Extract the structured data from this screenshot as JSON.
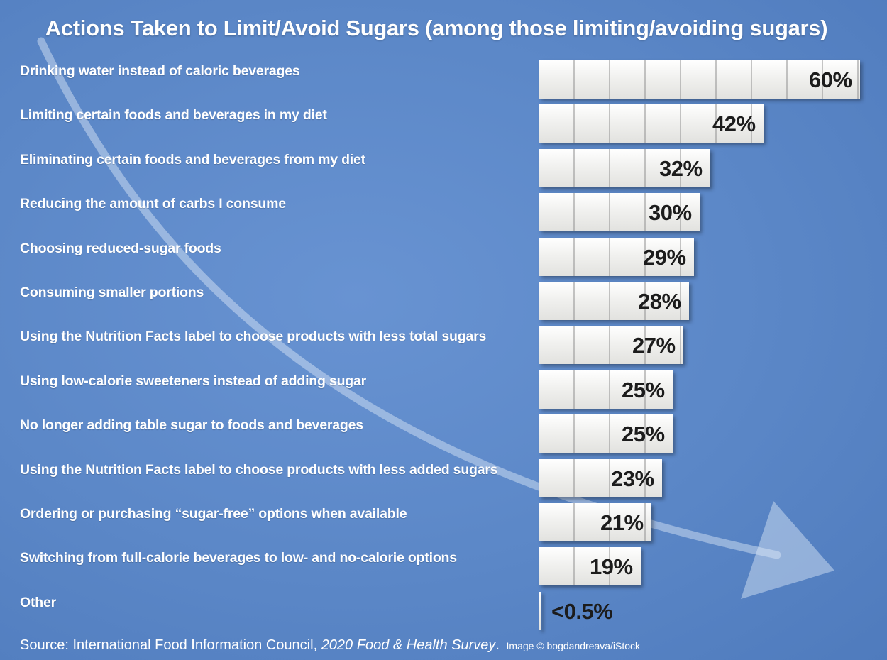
{
  "chart_data": {
    "type": "bar",
    "orientation": "horizontal",
    "title": "Actions Taken to Limit/Avoid Sugars (among those limiting/avoiding sugars)",
    "xlabel": "",
    "ylabel": "",
    "xlim": [
      0,
      60
    ],
    "grid": false,
    "categories": [
      "Drinking water instead of caloric beverages",
      "Limiting certain foods and beverages in my diet",
      "Eliminating certain foods and beverages from my diet",
      "Reducing the amount of carbs I consume",
      "Choosing reduced-sugar foods",
      "Consuming smaller portions",
      "Using the Nutrition Facts label to choose products with less total sugars",
      "Using low-calorie sweeteners instead of adding sugar",
      "No longer adding table sugar to foods and beverages",
      "Using the Nutrition Facts label to choose products with less added sugars",
      "Ordering or purchasing “sugar-free” options when available",
      "Switching from full-calorie beverages to low- and no-calorie options",
      "Other"
    ],
    "values": [
      60,
      42,
      32,
      30,
      29,
      28,
      27,
      25,
      25,
      23,
      21,
      19,
      0.4
    ],
    "value_labels": [
      "60%",
      "42%",
      "32%",
      "30%",
      "29%",
      "28%",
      "27%",
      "25%",
      "25%",
      "23%",
      "21%",
      "19%",
      "<0.5%"
    ]
  },
  "source": {
    "prefix": "Source: International Food Information Council, ",
    "publication": "2020 Food & Health Survey",
    "suffix": ".",
    "credit": "Image © bogdandreava/iStock"
  },
  "colors": {
    "background": "#5b87c7",
    "bar": "#f3f3f1",
    "text": "#ffffff",
    "value_text": "#1c1c1c"
  }
}
